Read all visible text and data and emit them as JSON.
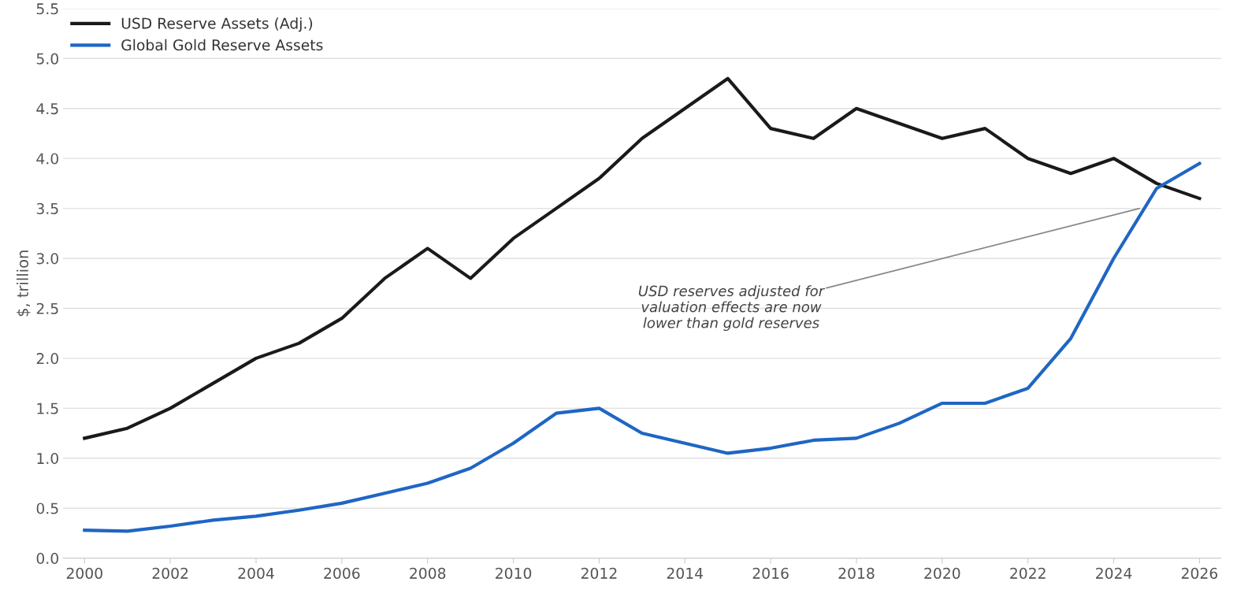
{
  "chart_data": {
    "type": "line",
    "ylabel": "$, trillion",
    "x": [
      2000,
      2001,
      2002,
      2003,
      2004,
      2005,
      2006,
      2007,
      2008,
      2009,
      2010,
      2011,
      2012,
      2013,
      2014,
      2015,
      2016,
      2017,
      2018,
      2019,
      2020,
      2021,
      2022,
      2023,
      2024,
      2025,
      2026
    ],
    "series": [
      {
        "name": "USD Reserve Assets (Adj.)",
        "color": "#1a1a1a",
        "values": [
          1.2,
          1.3,
          1.5,
          1.75,
          2.0,
          2.15,
          2.4,
          2.8,
          3.1,
          2.8,
          3.2,
          3.5,
          3.8,
          4.2,
          4.5,
          4.8,
          4.3,
          4.2,
          4.5,
          4.35,
          4.2,
          4.3,
          4.0,
          3.85,
          4.0,
          3.75,
          3.6
        ]
      },
      {
        "name": "Global Gold Reserve Assets",
        "color": "#1f66c4",
        "values": [
          0.28,
          0.27,
          0.32,
          0.38,
          0.42,
          0.48,
          0.55,
          0.65,
          0.75,
          0.9,
          1.15,
          1.45,
          1.5,
          1.25,
          1.15,
          1.05,
          1.1,
          1.18,
          1.2,
          1.35,
          1.55,
          1.55,
          1.7,
          2.2,
          3.0,
          3.7,
          3.95
        ]
      }
    ],
    "xlim": [
      1999.5,
      2026.5
    ],
    "xticks": [
      2000,
      2002,
      2004,
      2006,
      2008,
      2010,
      2012,
      2014,
      2016,
      2018,
      2020,
      2022,
      2024,
      2026
    ],
    "ylim": [
      0,
      5.5
    ],
    "yticks": [
      {
        "value": 0,
        "label": "0.0"
      },
      {
        "value": 0.5,
        "label": "0.5"
      },
      {
        "value": 1,
        "label": "1.0"
      },
      {
        "value": 1.5,
        "label": "1.5"
      },
      {
        "value": 2,
        "label": "2.0"
      },
      {
        "value": 2.5,
        "label": "2.5"
      },
      {
        "value": 3,
        "label": "3.0"
      },
      {
        "value": 3.5,
        "label": "3.5"
      },
      {
        "value": 4,
        "label": "4.0"
      },
      {
        "value": 4.5,
        "label": "4.5"
      },
      {
        "value": 5,
        "label": "5.0"
      },
      {
        "value": 5.5,
        "label": "5.5"
      }
    ],
    "grid": "y",
    "legend": "top left",
    "line_style": "solid",
    "marker": "none",
    "annotations": [
      {
        "text": "USD reserves adjusted for\nvaluation effects are now\nlower than gold reserves",
        "x": 2024.6,
        "y": 3.5
      }
    ]
  }
}
